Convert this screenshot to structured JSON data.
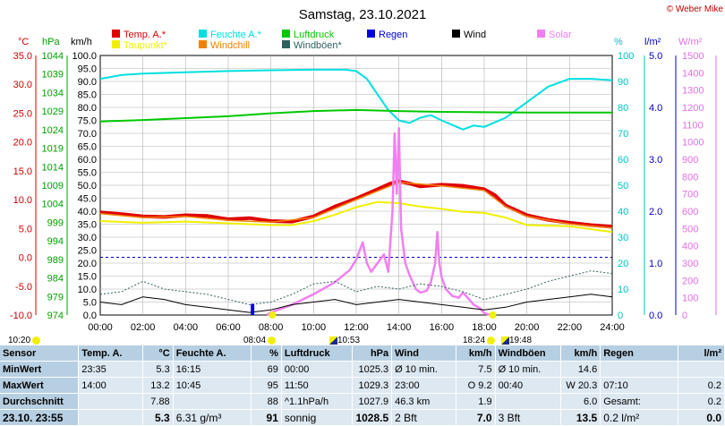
{
  "title": "Samstag, 23.10.2021",
  "copyright": "© Weber Mike",
  "legend": [
    {
      "label": "Temp. A.*",
      "color": "#e00000"
    },
    {
      "label": "Feuchte A.*",
      "color": "#00e0e0"
    },
    {
      "label": "Luftdruck",
      "color": "#00c800"
    },
    {
      "label": "Regen",
      "color": "#0000e0"
    },
    {
      "label": "Wind",
      "color": "#000000"
    },
    {
      "label": "Solar",
      "color": "#f080f0"
    },
    {
      "label": "Taupunkt*",
      "color": "#f0f000"
    },
    {
      "label": "Windchill",
      "color": "#f08000"
    },
    {
      "label": "Windböen*",
      "color": "#306060"
    }
  ],
  "axis_units": {
    "temp": "°C",
    "pressure": "hPa",
    "wind": "km/h",
    "humidity": "%",
    "rain": "l/m²",
    "solar": "W/m²"
  },
  "axis_ticks": {
    "temp": [
      "35.0",
      "30.0",
      "25.0",
      "20.0",
      "15.0",
      "10.0",
      "5.0",
      "0.0",
      "-5.0",
      "-10.0"
    ],
    "pressure": [
      "1044",
      "1039",
      "1034",
      "1029",
      "1024",
      "1019",
      "1014",
      "1009",
      "1004",
      "999",
      "994",
      "989",
      "984",
      "979",
      "974"
    ],
    "wind": [
      "100.0",
      "95.0",
      "90.0",
      "85.0",
      "80.0",
      "75.0",
      "70.0",
      "65.0",
      "60.0",
      "55.0",
      "50.0",
      "45.0",
      "40.0",
      "35.0",
      "30.0",
      "25.0",
      "20.0",
      "15.0",
      "10.0",
      "5.0",
      "0.0"
    ],
    "humidity": [
      "100",
      "90",
      "80",
      "70",
      "60",
      "50",
      "40",
      "30",
      "20",
      "10",
      "0"
    ],
    "rain": [
      "5.0",
      "4.0",
      "3.0",
      "2.0",
      "1.0",
      "0.0"
    ],
    "solar": [
      "1500",
      "1400",
      "1300",
      "1200",
      "1100",
      "1000",
      "900",
      "800",
      "700",
      "600",
      "500",
      "400",
      "300",
      "200",
      "100",
      "0"
    ],
    "time": [
      "00:00",
      "02:00",
      "04:00",
      "06:00",
      "08:00",
      "10:00",
      "12:00",
      "14:00",
      "16:00",
      "18:00",
      "20:00",
      "22:00",
      "24:00"
    ]
  },
  "chart_data": {
    "type": "line",
    "x_unit": "hour",
    "x_range": [
      0,
      24
    ],
    "series": [
      {
        "name": "Feuchte A.*",
        "axis": "humidity",
        "color": "#00e0e0",
        "points": [
          [
            0,
            91
          ],
          [
            1,
            92.5
          ],
          [
            2,
            93
          ],
          [
            4,
            93.5
          ],
          [
            6,
            94
          ],
          [
            8,
            94.3
          ],
          [
            10,
            94.5
          ],
          [
            11.5,
            94.5
          ],
          [
            12,
            94
          ],
          [
            12.5,
            91
          ],
          [
            13,
            85
          ],
          [
            13.5,
            79
          ],
          [
            14,
            75
          ],
          [
            14.5,
            74
          ],
          [
            15,
            76
          ],
          [
            15.5,
            77
          ],
          [
            16,
            75
          ],
          [
            17,
            71.5
          ],
          [
            17.5,
            73
          ],
          [
            18,
            72.5
          ],
          [
            19,
            76
          ],
          [
            20,
            82
          ],
          [
            21,
            88
          ],
          [
            22,
            91
          ],
          [
            23,
            91
          ],
          [
            24,
            90.5
          ]
        ]
      },
      {
        "name": "Luftdruck",
        "axis": "pressure",
        "color": "#00c800",
        "points": [
          [
            0,
            1026.2
          ],
          [
            2,
            1026.6
          ],
          [
            4,
            1027.1
          ],
          [
            6,
            1027.6
          ],
          [
            8,
            1028.4
          ],
          [
            10,
            1029.0
          ],
          [
            12,
            1029.3
          ],
          [
            14,
            1029.0
          ],
          [
            16,
            1028.8
          ],
          [
            18,
            1028.7
          ],
          [
            20,
            1028.6
          ],
          [
            22,
            1028.6
          ],
          [
            24,
            1028.6
          ]
        ]
      },
      {
        "name": "Temp. A.*",
        "axis": "temp",
        "color": "#e00000",
        "points": [
          [
            0,
            7.8
          ],
          [
            1,
            7.5
          ],
          [
            2,
            7.1
          ],
          [
            3,
            7.0
          ],
          [
            4,
            7.3
          ],
          [
            5,
            7.2
          ],
          [
            6,
            6.6
          ],
          [
            7,
            6.8
          ],
          [
            8,
            6.3
          ],
          [
            9,
            6.2
          ],
          [
            10,
            7.1
          ],
          [
            11,
            8.8
          ],
          [
            12,
            10.2
          ],
          [
            13,
            11.8
          ],
          [
            13.6,
            12.8
          ],
          [
            14,
            13.2
          ],
          [
            14.5,
            12.8
          ],
          [
            15,
            12.3
          ],
          [
            16,
            12.6
          ],
          [
            17,
            12.4
          ],
          [
            18,
            11.8
          ],
          [
            18.5,
            10.8
          ],
          [
            19,
            9.0
          ],
          [
            20,
            7.3
          ],
          [
            21,
            6.5
          ],
          [
            22,
            6.0
          ],
          [
            23,
            5.6
          ],
          [
            24,
            5.3
          ]
        ]
      },
      {
        "name": "Windchill",
        "axis": "temp",
        "color": "#f08000",
        "points": [
          [
            0,
            7.6
          ],
          [
            2,
            6.9
          ],
          [
            4,
            7.1
          ],
          [
            6,
            6.4
          ],
          [
            8,
            6.1
          ],
          [
            10,
            6.9
          ],
          [
            12,
            10.0
          ],
          [
            14,
            13.0
          ],
          [
            16,
            12.4
          ],
          [
            18,
            11.6
          ],
          [
            19,
            8.8
          ],
          [
            20,
            7.1
          ],
          [
            22,
            5.8
          ],
          [
            24,
            5.1
          ]
        ]
      },
      {
        "name": "Taupunkt*",
        "axis": "temp",
        "color": "#f0f000",
        "points": [
          [
            0,
            6.3
          ],
          [
            2,
            6.0
          ],
          [
            4,
            6.2
          ],
          [
            6,
            5.9
          ],
          [
            8,
            5.6
          ],
          [
            9,
            5.6
          ],
          [
            10,
            6.3
          ],
          [
            11,
            7.4
          ],
          [
            12,
            8.7
          ],
          [
            13,
            9.6
          ],
          [
            14,
            9.4
          ],
          [
            15,
            8.8
          ],
          [
            16,
            8.4
          ],
          [
            17,
            7.9
          ],
          [
            18,
            7.7
          ],
          [
            19,
            6.9
          ],
          [
            20,
            5.6
          ],
          [
            22,
            5.4
          ],
          [
            24,
            4.4
          ]
        ]
      },
      {
        "name": "Solar",
        "axis": "solar",
        "color": "#f080f0",
        "points": [
          [
            7.8,
            0
          ],
          [
            8,
            15
          ],
          [
            9,
            60
          ],
          [
            10,
            120
          ],
          [
            11,
            190
          ],
          [
            11.7,
            260
          ],
          [
            12,
            320
          ],
          [
            12.3,
            420
          ],
          [
            12.5,
            300
          ],
          [
            12.7,
            250
          ],
          [
            13,
            300
          ],
          [
            13.3,
            350
          ],
          [
            13.5,
            250
          ],
          [
            13.7,
            600
          ],
          [
            13.8,
            1050
          ],
          [
            13.9,
            700
          ],
          [
            14,
            1080
          ],
          [
            14.1,
            500
          ],
          [
            14.3,
            300
          ],
          [
            14.5,
            230
          ],
          [
            14.8,
            150
          ],
          [
            15,
            130
          ],
          [
            15.3,
            140
          ],
          [
            15.5,
            190
          ],
          [
            15.7,
            300
          ],
          [
            15.8,
            480
          ],
          [
            15.9,
            300
          ],
          [
            16,
            220
          ],
          [
            16.2,
            150
          ],
          [
            16.5,
            110
          ],
          [
            16.8,
            100
          ],
          [
            17,
            130
          ],
          [
            17.3,
            90
          ],
          [
            17.5,
            60
          ],
          [
            17.8,
            40
          ],
          [
            18,
            10
          ],
          [
            18.3,
            0
          ]
        ]
      },
      {
        "name": "Windböen*",
        "axis": "wind",
        "color": "#306060",
        "points": [
          [
            0,
            8
          ],
          [
            1,
            9
          ],
          [
            2,
            13
          ],
          [
            3,
            10
          ],
          [
            4,
            9
          ],
          [
            5,
            8
          ],
          [
            6,
            6
          ],
          [
            7,
            4
          ],
          [
            8,
            5
          ],
          [
            9,
            8
          ],
          [
            10,
            12
          ],
          [
            11,
            13
          ],
          [
            12,
            9
          ],
          [
            13,
            11
          ],
          [
            14,
            10
          ],
          [
            15,
            12
          ],
          [
            16,
            11
          ],
          [
            17,
            9
          ],
          [
            18,
            6
          ],
          [
            19,
            8
          ],
          [
            20,
            10
          ],
          [
            21,
            13
          ],
          [
            22,
            15
          ],
          [
            23,
            17
          ],
          [
            24,
            16
          ]
        ]
      },
      {
        "name": "Wind",
        "axis": "wind",
        "color": "#000000",
        "points": [
          [
            0,
            5
          ],
          [
            1,
            4
          ],
          [
            2,
            7
          ],
          [
            3,
            6
          ],
          [
            4,
            4
          ],
          [
            5,
            3
          ],
          [
            6,
            2
          ],
          [
            7,
            1
          ],
          [
            8,
            2
          ],
          [
            9,
            4
          ],
          [
            10,
            5
          ],
          [
            11,
            6
          ],
          [
            12,
            4
          ],
          [
            13,
            5
          ],
          [
            14,
            6
          ],
          [
            15,
            5
          ],
          [
            16,
            4
          ],
          [
            17,
            3
          ],
          [
            18,
            2
          ],
          [
            19,
            3
          ],
          [
            20,
            5
          ],
          [
            21,
            6
          ],
          [
            22,
            7
          ],
          [
            23,
            8
          ],
          [
            24,
            7
          ]
        ]
      },
      {
        "name": "Regen",
        "axis": "rain",
        "color": "#0000e0",
        "points": [
          [
            7.1,
            0
          ],
          [
            7.1,
            0.2
          ],
          [
            7.18,
            0.2
          ],
          [
            7.18,
            0
          ]
        ]
      }
    ],
    "reference_line": {
      "axis": "temp",
      "value": 0,
      "style": "dashed",
      "color": "#0000c0"
    },
    "grid": true
  },
  "sun": {
    "left_label": "10:20",
    "sunrise": "08:04",
    "high1": "10:53",
    "sunset": "18:24",
    "high2": "19:48"
  },
  "table": {
    "header": [
      "Sensor",
      "Temp. A.",
      "°C",
      "Feuchte A.",
      "%",
      "Luftdruck",
      "hPa",
      "Wind",
      "km/h",
      "Windböen",
      "km/h",
      "Regen",
      "l/m²"
    ],
    "rows": [
      {
        "label": "MinWert",
        "cells": [
          "23:35",
          "5.3",
          "16:15",
          "69",
          "00:00",
          "1025.3",
          "Ø 10 min.",
          "7.5",
          "Ø 10 min.",
          "14.6",
          "",
          ""
        ]
      },
      {
        "label": "MaxWert",
        "cells": [
          "14:00",
          "13.2",
          "10:45",
          "95",
          "11:50",
          "1029.3",
          "23:00",
          "O 9.2",
          "00:40",
          "W 20.3",
          "07:10",
          "0.2"
        ]
      },
      {
        "label": "Durchschnitt",
        "cells": [
          "",
          "7.88",
          "",
          "88",
          "^1.1hPa/h",
          "1027.9",
          "46.3 km",
          "1.9",
          "",
          "6.0",
          "Gesamt:",
          "0.2"
        ]
      },
      {
        "label": "23.10. 23:55",
        "cells": [
          "",
          "5.3",
          "6.31 g/m³",
          "91",
          "sonnig",
          "1028.5",
          "2 Bft",
          "7.0",
          "3 Bft",
          "13.5",
          "0.2 l/m²",
          "0.0"
        ]
      }
    ]
  }
}
